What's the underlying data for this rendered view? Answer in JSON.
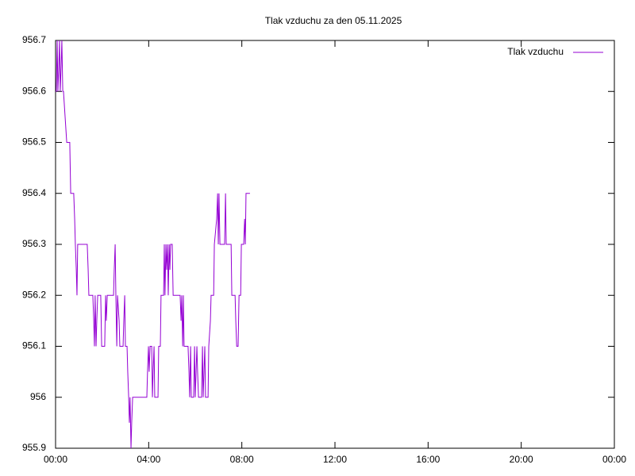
{
  "chart_data": {
    "type": "line",
    "title": "Tlak vzduchu za den 05.11.2025",
    "x": [
      0,
      0.03,
      0.07,
      0.1,
      0.14,
      0.17,
      0.2,
      0.24,
      0.27,
      0.31,
      0.34,
      0.41,
      0.48,
      0.61,
      0.65,
      0.78,
      0.82,
      0.85,
      0.89,
      0.92,
      0.95,
      1.36,
      1.4,
      1.43,
      1.6,
      1.64,
      1.67,
      1.7,
      1.74,
      1.77,
      1.81,
      1.94,
      1.98,
      2.11,
      2.15,
      2.18,
      2.22,
      2.49,
      2.52,
      2.56,
      2.59,
      2.63,
      2.66,
      2.73,
      2.76,
      2.9,
      2.93,
      2.97,
      3.0,
      3.07,
      3.1,
      3.14,
      3.17,
      3.2,
      3.24,
      3.27,
      3.31,
      3.92,
      3.95,
      3.99,
      4.02,
      4.06,
      4.13,
      4.16,
      4.19,
      4.23,
      4.26,
      4.4,
      4.43,
      4.5,
      4.53,
      4.64,
      4.67,
      4.7,
      4.74,
      4.77,
      4.81,
      4.84,
      4.88,
      4.91,
      4.94,
      5.01,
      5.05,
      5.35,
      5.39,
      5.42,
      5.46,
      5.49,
      5.52,
      5.69,
      5.73,
      5.76,
      5.8,
      5.83,
      5.93,
      5.97,
      6.0,
      6.07,
      6.1,
      6.14,
      6.27,
      6.31,
      6.34,
      6.41,
      6.44,
      6.55,
      6.58,
      6.65,
      6.68,
      6.79,
      6.82,
      6.92,
      6.96,
      6.99,
      7.02,
      7.06,
      7.26,
      7.3,
      7.33,
      7.54,
      7.57,
      7.71,
      7.74,
      7.78,
      7.84,
      7.88,
      7.95,
      7.98,
      8.08,
      8.12,
      8.15,
      8.18,
      8.35
    ],
    "series": [
      {
        "name": "Tlak vzduchu",
        "color": "#9400d3",
        "values": [
          956.6,
          956.6,
          956.7,
          956.6,
          956.65,
          956.7,
          956.6,
          956.65,
          956.7,
          956.6,
          956.6,
          956.55,
          956.5,
          956.5,
          956.4,
          956.4,
          956.35,
          956.3,
          956.25,
          956.2,
          956.3,
          956.3,
          956.25,
          956.2,
          956.2,
          956.15,
          956.1,
          956.2,
          956.1,
          956.15,
          956.2,
          956.2,
          956.1,
          956.1,
          956.2,
          956.15,
          956.2,
          956.2,
          956.25,
          956.3,
          956.2,
          956.1,
          956.2,
          956.15,
          956.1,
          956.1,
          956.15,
          956.2,
          956.1,
          956.1,
          956.05,
          956.0,
          955.95,
          956.0,
          955.9,
          955.95,
          956.0,
          956.0,
          956.05,
          956.1,
          956.05,
          956.1,
          956.1,
          956.0,
          956.05,
          956.1,
          956.0,
          956.0,
          956.1,
          956.1,
          956.2,
          956.2,
          956.3,
          956.2,
          956.3,
          956.25,
          956.3,
          956.2,
          956.3,
          956.25,
          956.3,
          956.3,
          956.2,
          956.2,
          956.15,
          956.2,
          956.1,
          956.2,
          956.1,
          956.1,
          956.05,
          956.0,
          956.1,
          956.0,
          956.0,
          956.1,
          956.0,
          956.1,
          956.05,
          956.0,
          956.0,
          956.1,
          956.0,
          956.1,
          956.0,
          956.0,
          956.1,
          956.15,
          956.2,
          956.2,
          956.3,
          956.35,
          956.4,
          956.3,
          956.4,
          956.3,
          956.3,
          956.4,
          956.3,
          956.3,
          956.2,
          956.2,
          956.15,
          956.1,
          956.1,
          956.2,
          956.2,
          956.3,
          956.3,
          956.35,
          956.3,
          956.4,
          956.4
        ]
      }
    ],
    "xlim": [
      0,
      24
    ],
    "xticks": [
      {
        "value": 0,
        "label": "00:00"
      },
      {
        "value": 4,
        "label": "04:00"
      },
      {
        "value": 8,
        "label": "08:00"
      },
      {
        "value": 12,
        "label": "12:00"
      },
      {
        "value": 16,
        "label": "16:00"
      },
      {
        "value": 20,
        "label": "20:00"
      },
      {
        "value": 24,
        "label": "00:00"
      }
    ],
    "ylim": [
      955.9,
      956.7
    ],
    "yticks": [
      955.9,
      956,
      956.1,
      956.2,
      956.3,
      956.4,
      956.5,
      956.6,
      956.7
    ],
    "legend": "top-right"
  }
}
